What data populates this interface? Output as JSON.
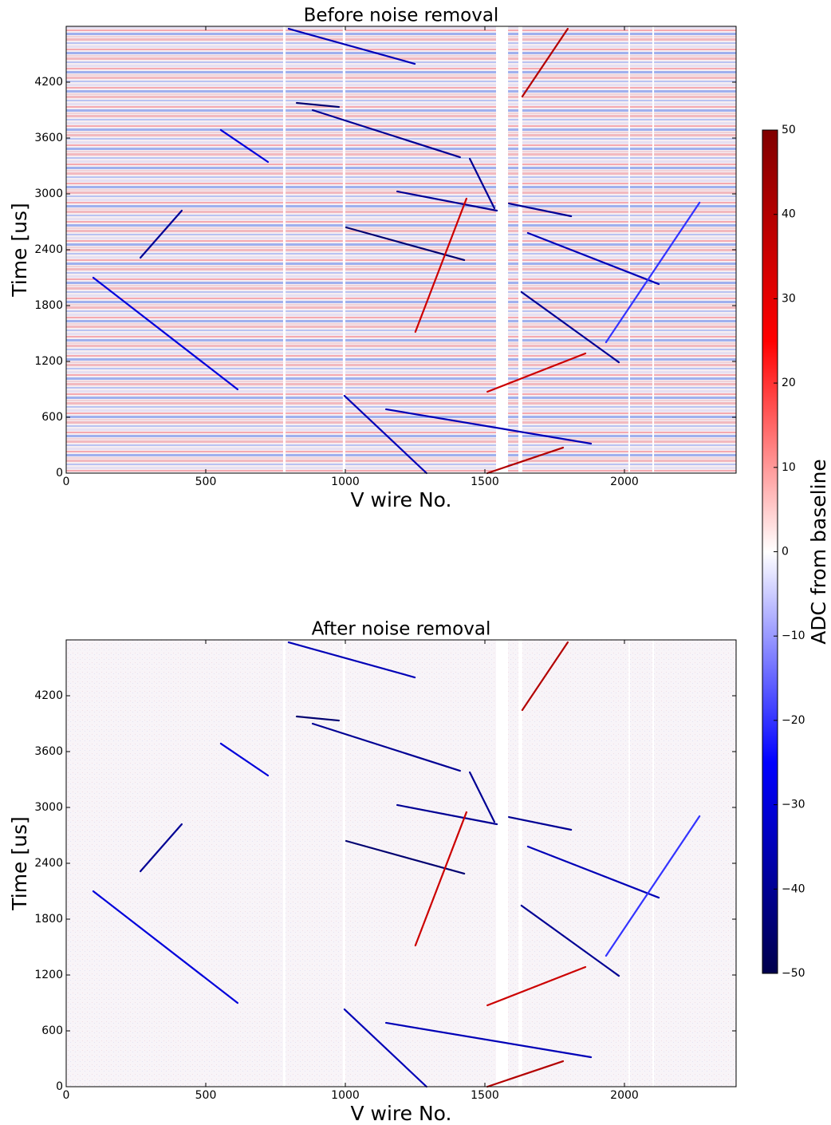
{
  "chart_data": [
    {
      "type": "heatmap",
      "title": "Before noise removal",
      "xlabel": "V wire No.",
      "ylabel": "Time [us]",
      "xlim": [
        0,
        2400
      ],
      "ylim": [
        0,
        4800
      ],
      "xticks": [
        0,
        500,
        1000,
        1500,
        2000
      ],
      "yticks": [
        0,
        600,
        1200,
        1800,
        2400,
        3000,
        3600,
        4200
      ],
      "dead_wires": [
        [
          777,
          786
        ],
        [
          991,
          1000
        ],
        [
          1540,
          1583
        ],
        [
          1620,
          1634
        ],
        [
          2014,
          2020
        ],
        [
          2100,
          2106
        ]
      ],
      "tracks": [
        {
          "x": [
            97,
            614
          ],
          "y": [
            2100,
            900
          ],
          "value": -30
        },
        {
          "x": [
            554,
            723
          ],
          "y": [
            3686,
            3343
          ],
          "value": -30
        },
        {
          "x": [
            797,
            1249
          ],
          "y": [
            4774,
            4397
          ],
          "value": -35
        },
        {
          "x": [
            826,
            977
          ],
          "y": [
            3977,
            3934
          ],
          "value": -45
        },
        {
          "x": [
            883,
            1411
          ],
          "y": [
            3900,
            3394
          ],
          "value": -40
        },
        {
          "x": [
            1003,
            1426
          ],
          "y": [
            2640,
            2289
          ],
          "value": -45
        },
        {
          "x": [
            1186,
            1543
          ],
          "y": [
            3026,
            2820
          ],
          "value": -40
        },
        {
          "x": [
            1251,
            1434
          ],
          "y": [
            1517,
            2949
          ],
          "value": 35
        },
        {
          "x": [
            1586,
            1809
          ],
          "y": [
            2897,
            2760
          ],
          "value": -40
        },
        {
          "x": [
            1631,
            1980
          ],
          "y": [
            1946,
            1191
          ],
          "value": -40
        },
        {
          "x": [
            1654,
            2123
          ],
          "y": [
            2580,
            2031
          ],
          "value": -35
        },
        {
          "x": [
            1509,
            1860
          ],
          "y": [
            874,
            1286
          ],
          "value": 35
        },
        {
          "x": [
            1634,
            1797
          ],
          "y": [
            4046,
            4774
          ],
          "value": 40
        },
        {
          "x": [
            1934,
            2269
          ],
          "y": [
            1406,
            2906
          ],
          "value": -20
        },
        {
          "x": [
            997,
            1291
          ],
          "y": [
            831,
            0
          ],
          "value": -35
        },
        {
          "x": [
            1146,
            1880
          ],
          "y": [
            686,
            317
          ],
          "value": -35
        },
        {
          "x": [
            1509,
            1780
          ],
          "y": [
            0,
            274
          ],
          "value": 40
        },
        {
          "x": [
            266,
            414
          ],
          "y": [
            2314,
            2820
          ],
          "value": -40
        },
        {
          "x": [
            1446,
            1534
          ],
          "y": [
            3377,
            2846
          ],
          "value": -40
        }
      ]
    },
    {
      "type": "heatmap",
      "title": "After noise removal",
      "xlabel": "V wire No.",
      "ylabel": "Time [us]",
      "xlim": [
        0,
        2400
      ],
      "ylim": [
        0,
        4800
      ],
      "xticks": [
        0,
        500,
        1000,
        1500,
        2000
      ],
      "yticks": [
        0,
        600,
        1200,
        1800,
        2400,
        3000,
        3600,
        4200
      ],
      "dead_wires": [
        [
          777,
          786
        ],
        [
          991,
          1000
        ],
        [
          1540,
          1583
        ],
        [
          1620,
          1634
        ],
        [
          2014,
          2020
        ],
        [
          2100,
          2106
        ]
      ],
      "tracks": [
        {
          "x": [
            97,
            614
          ],
          "y": [
            2100,
            900
          ],
          "value": -30
        },
        {
          "x": [
            554,
            723
          ],
          "y": [
            3686,
            3343
          ],
          "value": -30
        },
        {
          "x": [
            797,
            1249
          ],
          "y": [
            4774,
            4397
          ],
          "value": -35
        },
        {
          "x": [
            826,
            977
          ],
          "y": [
            3977,
            3934
          ],
          "value": -45
        },
        {
          "x": [
            883,
            1411
          ],
          "y": [
            3900,
            3394
          ],
          "value": -40
        },
        {
          "x": [
            1003,
            1426
          ],
          "y": [
            2640,
            2289
          ],
          "value": -45
        },
        {
          "x": [
            1186,
            1543
          ],
          "y": [
            3026,
            2820
          ],
          "value": -40
        },
        {
          "x": [
            1251,
            1434
          ],
          "y": [
            1517,
            2949
          ],
          "value": 35
        },
        {
          "x": [
            1586,
            1809
          ],
          "y": [
            2897,
            2760
          ],
          "value": -40
        },
        {
          "x": [
            1631,
            1980
          ],
          "y": [
            1946,
            1191
          ],
          "value": -40
        },
        {
          "x": [
            1654,
            2123
          ],
          "y": [
            2580,
            2031
          ],
          "value": -35
        },
        {
          "x": [
            1509,
            1860
          ],
          "y": [
            874,
            1286
          ],
          "value": 35
        },
        {
          "x": [
            1634,
            1797
          ],
          "y": [
            4046,
            4774
          ],
          "value": 40
        },
        {
          "x": [
            1934,
            2269
          ],
          "y": [
            1406,
            2906
          ],
          "value": -20
        },
        {
          "x": [
            997,
            1291
          ],
          "y": [
            831,
            0
          ],
          "value": -35
        },
        {
          "x": [
            1146,
            1880
          ],
          "y": [
            686,
            317
          ],
          "value": -35
        },
        {
          "x": [
            1509,
            1780
          ],
          "y": [
            0,
            274
          ],
          "value": 40
        },
        {
          "x": [
            266,
            414
          ],
          "y": [
            2314,
            2820
          ],
          "value": -40
        },
        {
          "x": [
            1446,
            1534
          ],
          "y": [
            3377,
            2846
          ],
          "value": -40
        }
      ]
    }
  ],
  "colorbar": {
    "label": "ADC from baseline",
    "lim": [
      -50,
      50
    ],
    "ticks": [
      {
        "value": -50,
        "label": "−50"
      },
      {
        "value": -40,
        "label": "−40"
      },
      {
        "value": -30,
        "label": "−30"
      },
      {
        "value": -20,
        "label": "−20"
      },
      {
        "value": -10,
        "label": "−10"
      },
      0,
      10,
      20,
      30,
      40,
      50
    ],
    "colormap": [
      "#00004c",
      "#0000ff",
      "#ffffff",
      "#ff0000",
      "#800000"
    ]
  }
}
